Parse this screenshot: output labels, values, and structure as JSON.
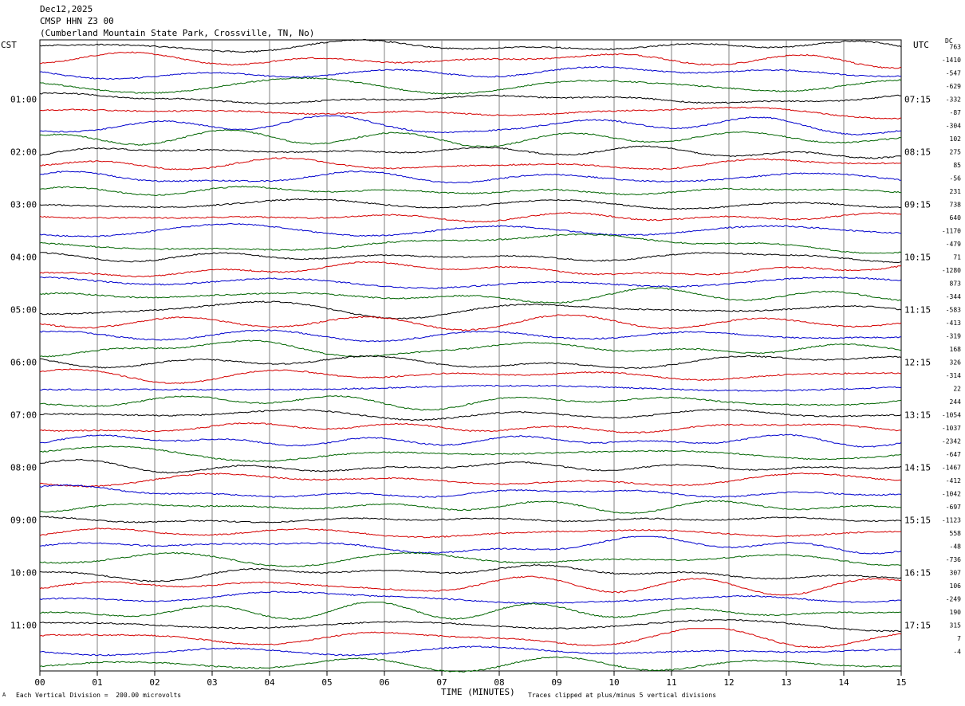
{
  "header": {
    "date": "Dec12,2025",
    "station": "CMSP HHN Z3 00",
    "location": "(Cumberland Mountain State Park, Crossville, TN, No)"
  },
  "left_zone": "CST",
  "right_zone": "UTC",
  "dc_label": "DC",
  "footer": {
    "scale_note": "Each Vertical Division =  200.00 microvolts",
    "clip_note": "Traces clipped at plus/minus 5 vertical divisions",
    "corner_mark": "A"
  },
  "colors": {
    "black": "#000000",
    "red": "#d40000",
    "blue": "#0000cc",
    "green": "#006400",
    "grid": "#808080"
  },
  "chart_data": {
    "type": "line",
    "title": "CMSP HHN Z3 00",
    "xlabel": "TIME (MINUTES)",
    "x_ticks": [
      "00",
      "01",
      "02",
      "03",
      "04",
      "05",
      "06",
      "07",
      "08",
      "09",
      "10",
      "11",
      "12",
      "13",
      "14",
      "15"
    ],
    "xlim": [
      0,
      15
    ],
    "left_hour_labels": [
      "01:00",
      "02:00",
      "03:00",
      "04:00",
      "05:00",
      "06:00",
      "07:00",
      "08:00",
      "09:00",
      "10:00",
      "11:00"
    ],
    "right_hour_labels": [
      "07:15",
      "08:15",
      "09:15",
      "10:15",
      "11:15",
      "12:15",
      "13:15",
      "14:15",
      "15:15",
      "16:15",
      "17:15"
    ],
    "trace_color_cycle": [
      "black",
      "red",
      "blue",
      "green"
    ],
    "trace_count": 48,
    "dc_offsets": [
      "763",
      "-1410",
      "-547",
      "-629",
      "-332",
      "-87",
      "-304",
      "102",
      "275",
      "85",
      "-56",
      "231",
      "738",
      "640",
      "-1170",
      "-479",
      "71",
      "-1280",
      "873",
      "-344",
      "-583",
      "-413",
      "-319",
      "168",
      "326",
      "-314",
      "22",
      "244",
      "-1054",
      "-1037",
      "-2342",
      "-647",
      "-1467",
      "-412",
      "-1042",
      "-697",
      "-1123",
      "558",
      "-48",
      "-736",
      "307",
      "106",
      "-249",
      "190",
      "315",
      "7",
      "-4"
    ]
  }
}
